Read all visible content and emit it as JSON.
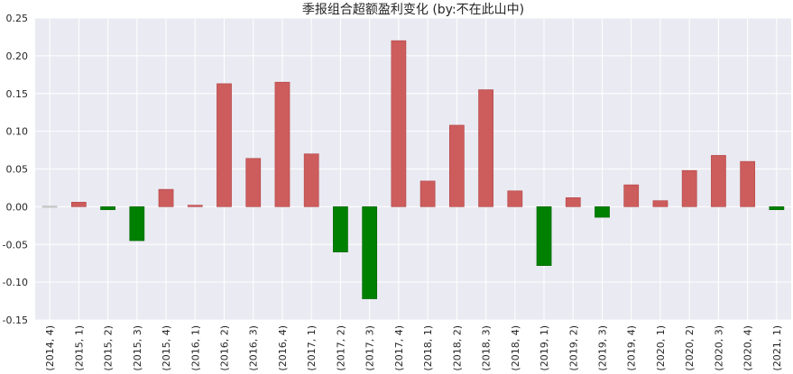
{
  "chart_data": {
    "type": "bar",
    "title": "季报组合超额盈利变化 (by:不在此山中)",
    "xlabel": "",
    "ylabel": "",
    "ylim": [
      -0.15,
      0.25
    ],
    "yticks": [
      "0.25",
      "0.20",
      "0.15",
      "0.10",
      "0.05",
      "0.00",
      "-0.05",
      "-0.10",
      "-0.15"
    ],
    "ytick_values": [
      0.25,
      0.2,
      0.15,
      0.1,
      0.05,
      0.0,
      -0.05,
      -0.1,
      -0.15
    ],
    "grid": true,
    "legend": "none",
    "colors": {
      "positive": "#cd5c5c",
      "negative": "#008000",
      "background": "#eaeaf2",
      "grid": "#ffffff"
    },
    "categories": [
      "(2014, 4)",
      "(2015, 1)",
      "(2015, 2)",
      "(2015, 3)",
      "(2015, 4)",
      "(2016, 1)",
      "(2016, 2)",
      "(2016, 3)",
      "(2016, 4)",
      "(2017, 1)",
      "(2017, 2)",
      "(2017, 3)",
      "(2017, 4)",
      "(2018, 1)",
      "(2018, 2)",
      "(2018, 3)",
      "(2018, 4)",
      "(2019, 1)",
      "(2019, 2)",
      "(2019, 3)",
      "(2019, 4)",
      "(2020, 1)",
      "(2020, 2)",
      "(2020, 3)",
      "(2020, 4)",
      "(2021, 1)"
    ],
    "values": [
      0.0,
      0.006,
      -0.004,
      -0.045,
      0.023,
      0.002,
      0.163,
      0.064,
      0.165,
      0.07,
      -0.06,
      -0.122,
      0.22,
      0.034,
      0.108,
      0.155,
      0.021,
      -0.078,
      0.012,
      -0.014,
      0.029,
      0.008,
      0.048,
      0.068,
      0.06,
      -0.004
    ]
  }
}
